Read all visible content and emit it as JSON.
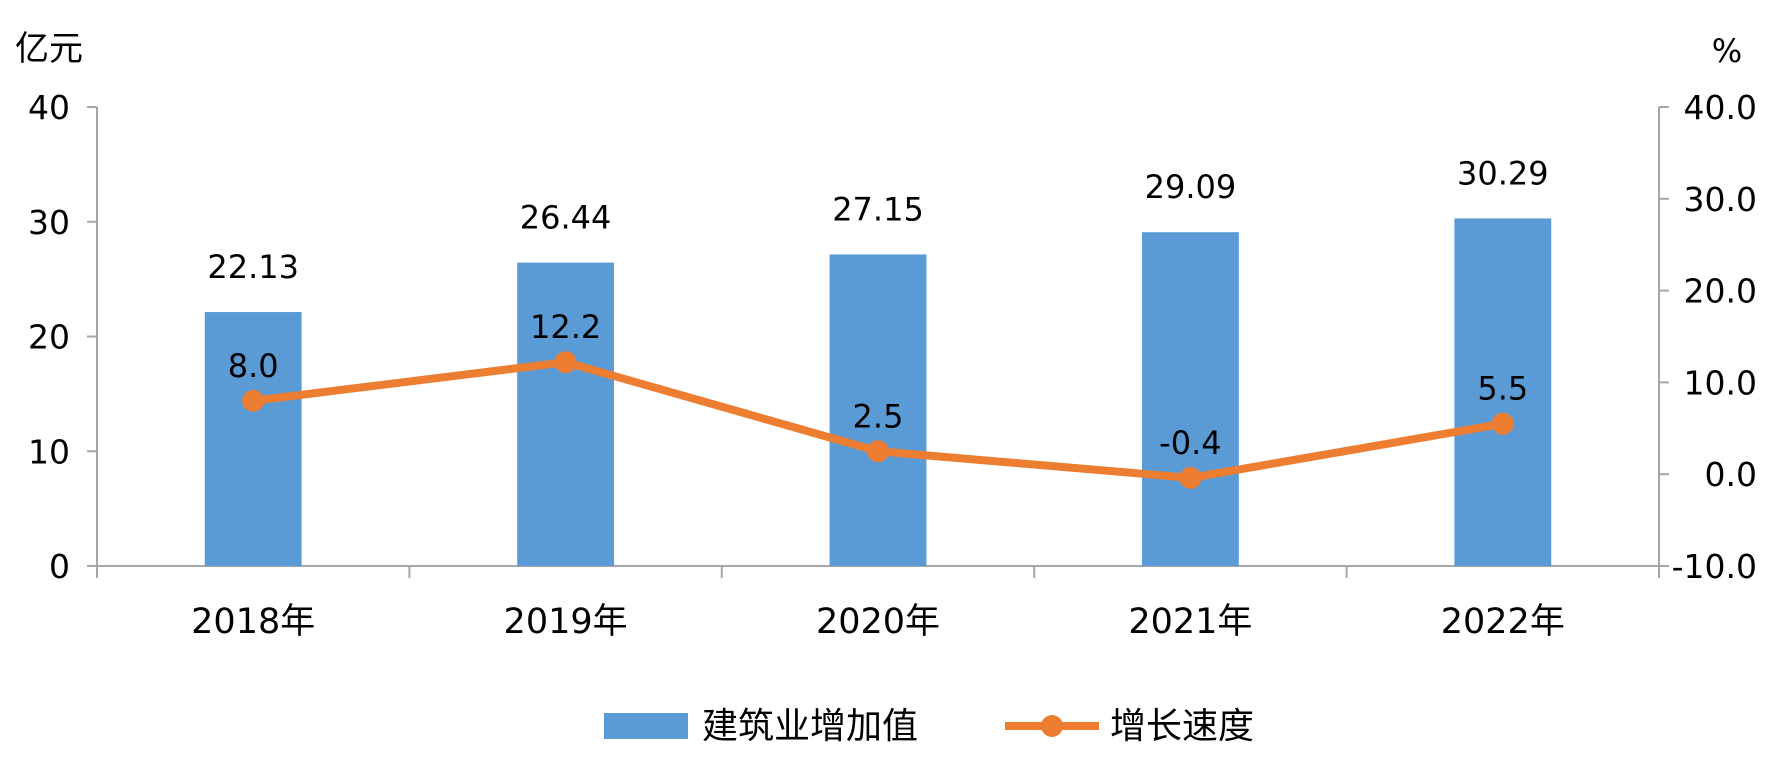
{
  "chart_data": {
    "type": "bar",
    "categories": [
      "2018年",
      "2019年",
      "2020年",
      "2021年",
      "2022年"
    ],
    "y_left_unit": "亿元",
    "y_right_unit": "%",
    "y_left_ticks": [
      "0",
      "10",
      "20",
      "30",
      "40"
    ],
    "y_right_ticks": [
      "-10.0",
      "0.0",
      "10.0",
      "20.0",
      "30.0",
      "40.0"
    ],
    "ylim_left": [
      0,
      40
    ],
    "ylim_right": [
      -10,
      40
    ],
    "grid": false,
    "legend_position": "bottom-center",
    "series": [
      {
        "name": "建筑业增加值",
        "type": "bar",
        "axis": "left",
        "color": "#5B9BD5",
        "values": [
          22.13,
          26.44,
          27.15,
          29.09,
          30.29
        ],
        "labels": [
          "22.13",
          "26.44",
          "27.15",
          "29.09",
          "30.29"
        ]
      },
      {
        "name": "增长速度",
        "type": "line",
        "axis": "right",
        "color": "#ED7D31",
        "values": [
          8.0,
          12.2,
          2.5,
          -0.4,
          5.5
        ],
        "labels": [
          "8.0",
          "12.2",
          "2.5",
          "-0.4",
          "5.5"
        ]
      }
    ],
    "negative_color": "#FF0000"
  }
}
